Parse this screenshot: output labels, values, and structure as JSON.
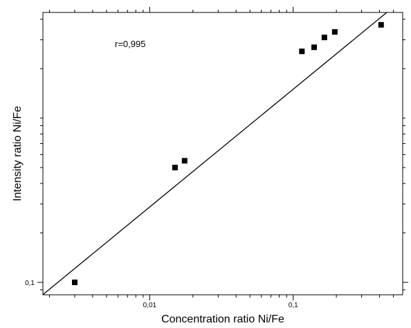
{
  "chart_data": {
    "type": "scatter",
    "xlabel": "Concentration ratio Ni/Fe",
    "ylabel": "Intensity ratio Ni/Fe",
    "x_scale": "log",
    "y_scale": "log",
    "xlim": [
      0.0018,
      0.58
    ],
    "ylim": [
      0.084,
      4.4
    ],
    "x_ticks": [
      {
        "value": 0.01,
        "label": "0,01"
      },
      {
        "value": 0.1,
        "label": "0,1"
      }
    ],
    "y_ticks": [
      {
        "value": 0.1,
        "label": "0,1"
      }
    ],
    "x_minor_ticks": [
      0.002,
      0.003,
      0.004,
      0.005,
      0.006,
      0.007,
      0.008,
      0.009,
      0.02,
      0.03,
      0.04,
      0.05,
      0.06,
      0.07,
      0.08,
      0.09,
      0.2,
      0.3,
      0.4,
      0.5
    ],
    "y_minor_ticks": [
      0.09,
      0.2,
      0.3,
      0.4,
      0.5,
      0.6,
      0.7,
      0.8,
      0.9,
      1,
      2,
      3,
      4
    ],
    "grid": false,
    "legend": "none",
    "annotation": "r=0,995",
    "series": [
      {
        "marker": "square",
        "color": "#000000",
        "points": [
          {
            "x": 0.003,
            "y": 0.1
          },
          {
            "x": 0.015,
            "y": 0.5
          },
          {
            "x": 0.0175,
            "y": 0.55
          },
          {
            "x": 0.115,
            "y": 2.55
          },
          {
            "x": 0.14,
            "y": 2.7
          },
          {
            "x": 0.165,
            "y": 3.1
          },
          {
            "x": 0.195,
            "y": 3.35
          },
          {
            "x": 0.41,
            "y": 3.7
          }
        ]
      }
    ],
    "fit_line": {
      "points": [
        {
          "x": 0.0018,
          "y": 0.0842
        },
        {
          "x": 0.449,
          "y": 4.4
        }
      ],
      "color": "#000000"
    }
  }
}
